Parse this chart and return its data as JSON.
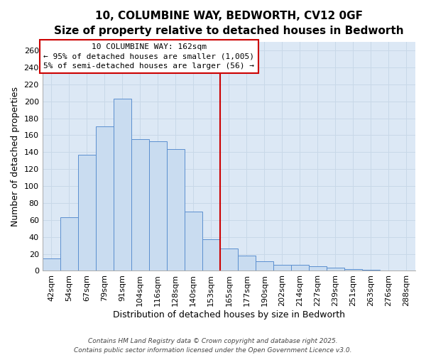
{
  "title": "10, COLUMBINE WAY, BEDWORTH, CV12 0GF",
  "subtitle": "Size of property relative to detached houses in Bedworth",
  "xlabel": "Distribution of detached houses by size in Bedworth",
  "ylabel": "Number of detached properties",
  "bar_labels": [
    "42sqm",
    "54sqm",
    "67sqm",
    "79sqm",
    "91sqm",
    "104sqm",
    "116sqm",
    "128sqm",
    "140sqm",
    "153sqm",
    "165sqm",
    "177sqm",
    "190sqm",
    "202sqm",
    "214sqm",
    "227sqm",
    "239sqm",
    "251sqm",
    "263sqm",
    "276sqm",
    "288sqm"
  ],
  "bar_values": [
    15,
    63,
    137,
    170,
    203,
    155,
    153,
    144,
    70,
    37,
    26,
    18,
    11,
    7,
    7,
    5,
    4,
    2,
    1,
    0,
    0
  ],
  "bar_color": "#c9dcf0",
  "bar_edge_color": "#5b8fcf",
  "red_line_after_index": 9,
  "annotation_title": "10 COLUMBINE WAY: 162sqm",
  "annotation_line1": "← 95% of detached houses are smaller (1,005)",
  "annotation_line2": "5% of semi-detached houses are larger (56) →",
  "annotation_box_color": "#ffffff",
  "annotation_box_edge": "#cc0000",
  "ylim": [
    0,
    270
  ],
  "yticks": [
    0,
    20,
    40,
    60,
    80,
    100,
    120,
    140,
    160,
    180,
    200,
    220,
    240,
    260
  ],
  "grid_color": "#c8d8e8",
  "plot_bg_color": "#dce8f5",
  "fig_bg_color": "#ffffff",
  "footer1": "Contains HM Land Registry data © Crown copyright and database right 2025.",
  "footer2": "Contains public sector information licensed under the Open Government Licence v3.0.",
  "title_fontsize": 11,
  "subtitle_fontsize": 9,
  "axis_label_fontsize": 9,
  "tick_fontsize": 8,
  "annotation_fontsize": 8,
  "footer_fontsize": 6.5
}
